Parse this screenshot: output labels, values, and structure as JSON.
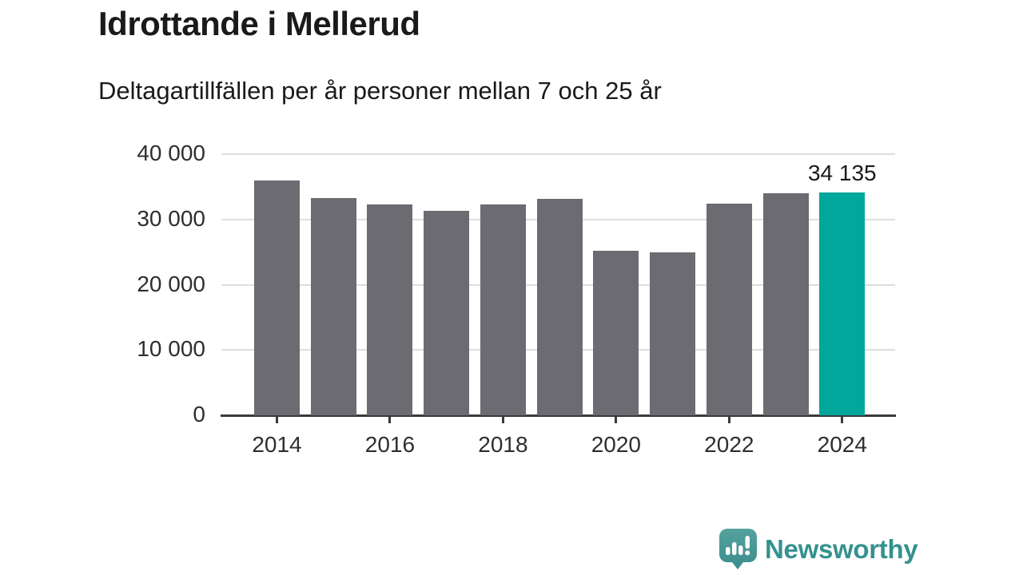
{
  "chart_data": {
    "type": "bar",
    "title": "Idrottande i Mellerud",
    "subtitle": "Deltagartillfällen per år personer mellan 7 och 25 år",
    "categories": [
      "2014",
      "2015",
      "2016",
      "2017",
      "2018",
      "2019",
      "2020",
      "2021",
      "2022",
      "2023",
      "2024"
    ],
    "values": [
      36000,
      33300,
      32300,
      31300,
      32300,
      33100,
      25200,
      25000,
      32400,
      34000,
      34135
    ],
    "highlight": {
      "category": "2024",
      "index": 10,
      "label": "34 135"
    },
    "ylim": [
      0,
      40000
    ],
    "y_ticks": [
      {
        "value": 0,
        "label": "0"
      },
      {
        "value": 10000,
        "label": "10 000"
      },
      {
        "value": 20000,
        "label": "20 000"
      },
      {
        "value": 30000,
        "label": "30 000"
      },
      {
        "value": 40000,
        "label": "40 000"
      }
    ],
    "x_ticks": [
      "2014",
      "2016",
      "2018",
      "2020",
      "2022",
      "2024"
    ],
    "grid": "horizontal-only",
    "legend": "none",
    "colors": {
      "bar": "#6c6b71",
      "highlight": "#00a79b",
      "gridline": "#dedede",
      "axis": "#3a3a3a",
      "text": "#1a1a1a"
    }
  },
  "footer": {
    "brand": "Newsworthy",
    "logo_icon": "newsworthy-speech-bubble-chart-icon",
    "brand_color": "#35918e"
  }
}
